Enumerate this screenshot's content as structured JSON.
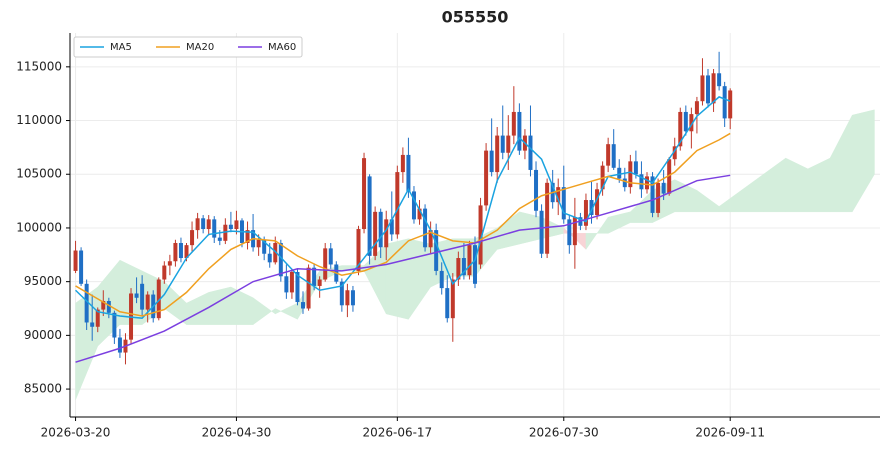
{
  "chart_data": {
    "type": "candlestick",
    "title": "055550",
    "xlim": [
      -1,
      145
    ],
    "xticks": [
      {
        "value": 0,
        "label": "2026-03-20"
      },
      {
        "value": 29,
        "label": "2026-04-30"
      },
      {
        "value": 58,
        "label": "2026-06-17"
      },
      {
        "value": 88,
        "label": "2026-07-30"
      },
      {
        "value": 118,
        "label": "2026-09-11"
      }
    ],
    "ylim": [
      82400,
      118150
    ],
    "yticks": [
      85000,
      90000,
      95000,
      100000,
      105000,
      110000,
      115000
    ],
    "grid": true,
    "legend": "upper left",
    "up_color": "#c0392b",
    "down_color": "#1f6fc5",
    "ohlc": [
      [
        96000,
        98800,
        95800,
        97900
      ],
      [
        97900,
        98200,
        94600,
        94800
      ],
      [
        94800,
        95200,
        90500,
        91200
      ],
      [
        91200,
        93800,
        89500,
        90800
      ],
      [
        90800,
        92600,
        90300,
        92400
      ],
      [
        92400,
        94200,
        91800,
        93200
      ],
      [
        93200,
        93500,
        91600,
        92100
      ],
      [
        92100,
        92300,
        89200,
        89800
      ],
      [
        89800,
        90600,
        87900,
        88400
      ],
      [
        88400,
        90200,
        87300,
        89600
      ],
      [
        89600,
        94400,
        89200,
        93900
      ],
      [
        93900,
        95400,
        93000,
        93500
      ],
      [
        94800,
        95600,
        91800,
        92400
      ],
      [
        92400,
        94100,
        91200,
        93800
      ],
      [
        93800,
        94200,
        91200,
        91600
      ],
      [
        91600,
        95400,
        91400,
        95200
      ],
      [
        95200,
        96900,
        94800,
        96500
      ],
      [
        96500,
        97500,
        95600,
        96900
      ],
      [
        96900,
        98900,
        96400,
        98600
      ],
      [
        98600,
        99100,
        96800,
        97200
      ],
      [
        97200,
        98600,
        96900,
        98400
      ],
      [
        98400,
        100600,
        97800,
        99800
      ],
      [
        99800,
        101400,
        99000,
        100900
      ],
      [
        100900,
        101200,
        99500,
        99900
      ],
      [
        99900,
        101200,
        99300,
        100800
      ],
      [
        100800,
        101100,
        98600,
        99100
      ],
      [
        99100,
        99800,
        98400,
        98800
      ],
      [
        98800,
        100900,
        98500,
        100300
      ],
      [
        100300,
        101500,
        99600,
        99900
      ],
      [
        99900,
        101600,
        99400,
        100700
      ],
      [
        100700,
        100900,
        98200,
        98600
      ],
      [
        98600,
        100600,
        98000,
        99800
      ],
      [
        99800,
        101300,
        97800,
        98200
      ],
      [
        98200,
        99400,
        97400,
        98900
      ],
      [
        98900,
        99200,
        97000,
        97600
      ],
      [
        97600,
        98600,
        96300,
        96800
      ],
      [
        96800,
        99200,
        96600,
        98600
      ],
      [
        98600,
        98900,
        95000,
        95500
      ],
      [
        95500,
        96600,
        93400,
        94000
      ],
      [
        94000,
        96200,
        93400,
        95900
      ],
      [
        95900,
        96200,
        92800,
        93100
      ],
      [
        93100,
        94100,
        92000,
        92500
      ],
      [
        92500,
        96600,
        92300,
        96300
      ],
      [
        96300,
        96700,
        94200,
        94600
      ],
      [
        94600,
        95500,
        93500,
        95200
      ],
      [
        95200,
        98600,
        95000,
        98100
      ],
      [
        98100,
        98600,
        96200,
        96600
      ],
      [
        96600,
        96900,
        94800,
        95000
      ],
      [
        95000,
        95300,
        92200,
        92800
      ],
      [
        92800,
        94800,
        91700,
        94200
      ],
      [
        94200,
        94600,
        92200,
        92800
      ],
      [
        96000,
        100200,
        95600,
        99900
      ],
      [
        99900,
        107000,
        99500,
        106500
      ],
      [
        104800,
        105000,
        96600,
        97400
      ],
      [
        97400,
        102000,
        97000,
        101500
      ],
      [
        101500,
        101800,
        97200,
        98200
      ],
      [
        98200,
        101600,
        97000,
        100800
      ],
      [
        100800,
        103400,
        98800,
        99400
      ],
      [
        99400,
        105800,
        99000,
        105200
      ],
      [
        105200,
        107500,
        104200,
        106800
      ],
      [
        106800,
        108400,
        102800,
        103400
      ],
      [
        103400,
        103900,
        100400,
        100800
      ],
      [
        100800,
        102600,
        100300,
        101800
      ],
      [
        101800,
        102200,
        97800,
        98200
      ],
      [
        98200,
        100600,
        97600,
        99800
      ],
      [
        99800,
        100400,
        95600,
        96000
      ],
      [
        96000,
        96800,
        93800,
        94400
      ],
      [
        94400,
        95600,
        91200,
        91600
      ],
      [
        91600,
        95800,
        89400,
        95200
      ],
      [
        95200,
        97800,
        94600,
        97200
      ],
      [
        97200,
        98600,
        95200,
        95600
      ],
      [
        95600,
        98800,
        95200,
        98400
      ],
      [
        98400,
        99200,
        94400,
        94800
      ],
      [
        96600,
        102800,
        96200,
        102100
      ],
      [
        102100,
        107900,
        101600,
        107200
      ],
      [
        107200,
        110200,
        104800,
        105200
      ],
      [
        105200,
        109400,
        104200,
        108600
      ],
      [
        108600,
        111400,
        106400,
        107000
      ],
      [
        107000,
        110500,
        105400,
        108600
      ],
      [
        108600,
        113200,
        107800,
        110800
      ],
      [
        110800,
        111600,
        106800,
        107200
      ],
      [
        107200,
        109200,
        106400,
        108600
      ],
      [
        108600,
        111400,
        104800,
        105400
      ],
      [
        105400,
        106200,
        101000,
        101600
      ],
      [
        101600,
        102200,
        97200,
        97600
      ],
      [
        97600,
        104600,
        97200,
        104200
      ],
      [
        104200,
        105400,
        101800,
        102400
      ],
      [
        102400,
        104600,
        101200,
        103800
      ],
      [
        103800,
        105800,
        100400,
        100800
      ],
      [
        100800,
        101200,
        97600,
        98400
      ],
      [
        98400,
        102800,
        96200,
        101000
      ],
      [
        101000,
        101400,
        99800,
        100200
      ],
      [
        100200,
        103200,
        99800,
        102600
      ],
      [
        102600,
        104400,
        100400,
        101200
      ],
      [
        101200,
        104200,
        100800,
        103600
      ],
      [
        103600,
        106200,
        103000,
        105800
      ],
      [
        105800,
        108400,
        105200,
        107800
      ],
      [
        107800,
        109200,
        105400,
        105600
      ],
      [
        105600,
        106400,
        104200,
        104600
      ],
      [
        104600,
        105600,
        103400,
        103800
      ],
      [
        103800,
        106800,
        103200,
        106200
      ],
      [
        106200,
        107200,
        104600,
        105000
      ],
      [
        105000,
        106200,
        102800,
        103600
      ],
      [
        103600,
        105200,
        103200,
        104800
      ],
      [
        104800,
        105200,
        101000,
        101400
      ],
      [
        101400,
        104600,
        101000,
        104200
      ],
      [
        104200,
        105400,
        102600,
        103200
      ],
      [
        103200,
        106600,
        103000,
        106400
      ],
      [
        106400,
        108400,
        105800,
        107600
      ],
      [
        107600,
        111200,
        107200,
        110800
      ],
      [
        110800,
        111400,
        108600,
        109000
      ],
      [
        109000,
        111200,
        107400,
        110600
      ],
      [
        110600,
        112200,
        108800,
        111800
      ],
      [
        111800,
        115800,
        111400,
        114200
      ],
      [
        114200,
        114800,
        111200,
        111600
      ],
      [
        111600,
        114800,
        110800,
        114400
      ],
      [
        114400,
        116400,
        112800,
        113200
      ],
      [
        113200,
        113600,
        109400,
        110200
      ],
      [
        110200,
        113000,
        109200,
        112800
      ]
    ],
    "series": [
      {
        "name": "MA5",
        "color": "#1aa3e0",
        "x": [
          0,
          4,
          8,
          12,
          16,
          20,
          24,
          28,
          32,
          36,
          40,
          44,
          48,
          52,
          56,
          60,
          64,
          68,
          72,
          76,
          80,
          84,
          88,
          92,
          96,
          100,
          104,
          108,
          112,
          116,
          118
        ],
        "values": [
          94200,
          92200,
          91800,
          91600,
          93800,
          97200,
          99400,
          99700,
          99600,
          97800,
          95600,
          94200,
          94600,
          97200,
          99800,
          103600,
          99800,
          94800,
          97000,
          104400,
          108400,
          106400,
          101400,
          100600,
          104800,
          105200,
          104200,
          107200,
          110400,
          112200,
          111800
        ]
      },
      {
        "name": "MA20",
        "color": "#f0a020",
        "x": [
          0,
          4,
          8,
          12,
          16,
          20,
          24,
          28,
          32,
          36,
          40,
          44,
          48,
          52,
          56,
          60,
          64,
          68,
          72,
          76,
          80,
          84,
          88,
          92,
          96,
          100,
          104,
          108,
          112,
          116,
          118
        ],
        "values": [
          94600,
          93400,
          92200,
          91800,
          92400,
          94000,
          96200,
          98000,
          99000,
          98800,
          97400,
          96400,
          95600,
          96000,
          96800,
          98800,
          99600,
          98800,
          98600,
          99800,
          101800,
          103000,
          103600,
          104200,
          104800,
          104200,
          104000,
          105200,
          107200,
          108200,
          108800
        ]
      },
      {
        "name": "MA60",
        "color": "#7b3fe0",
        "x": [
          0,
          8,
          16,
          24,
          32,
          40,
          48,
          56,
          64,
          72,
          80,
          88,
          96,
          104,
          112,
          118
        ],
        "values": [
          87500,
          88800,
          90400,
          92600,
          95000,
          96200,
          96000,
          96600,
          97600,
          98600,
          99800,
          100200,
          101400,
          102600,
          104400,
          104900
        ]
      }
    ],
    "cloud": {
      "up_color": "#d4eedc",
      "down_color": "#f8d4d6",
      "x": [
        0,
        4,
        8,
        12,
        16,
        20,
        24,
        28,
        32,
        36,
        40,
        44,
        48,
        52,
        56,
        60,
        64,
        68,
        72,
        76,
        80,
        84,
        88,
        92,
        96,
        100,
        104,
        108,
        112,
        116,
        120,
        124,
        128,
        132,
        136,
        140,
        144
      ],
      "span_a": [
        93000,
        94500,
        97000,
        96000,
        95000,
        93000,
        94000,
        94500,
        93500,
        92000,
        93000,
        96000,
        96500,
        96500,
        98500,
        99000,
        98500,
        99000,
        99000,
        100000,
        101500,
        101000,
        100000,
        98000,
        101000,
        101500,
        103500,
        104500,
        103500,
        102000,
        103500,
        105000,
        106500,
        105500,
        106500,
        110500,
        111000
      ],
      "span_b": [
        84000,
        89000,
        91000,
        91000,
        92500,
        91000,
        91000,
        91000,
        91000,
        92500,
        91500,
        95000,
        96000,
        96000,
        92000,
        91500,
        94500,
        95500,
        95500,
        98000,
        98500,
        99000,
        99500,
        99500,
        99500,
        100500,
        100500,
        101500,
        101500,
        101500,
        101500,
        101500,
        101500,
        101500,
        101500,
        101500,
        105000
      ]
    }
  }
}
